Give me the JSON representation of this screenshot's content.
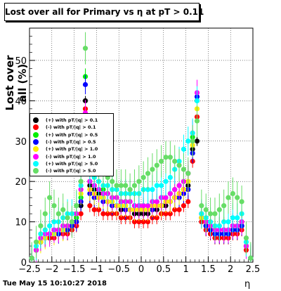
{
  "title": "Lost over all for Primary vs   η at pT > 0.11",
  "timestamp": "Tue May 15 10:10:27 2018",
  "chart_data": {
    "type": "scatter",
    "title": "Lost over all for Primary vs   η at pT > 0.11",
    "xlabel": "η",
    "ylabel": "Lost over all (%)",
    "xlim": [
      -2.5,
      2.5
    ],
    "ylim": [
      0,
      58
    ],
    "xticks": [
      "−2.5",
      "−2",
      "−1.5",
      "−1",
      "−0.5",
      "0",
      "0.5",
      "1",
      "1.5",
      "2",
      "2.5"
    ],
    "yticks": [
      "0",
      "10",
      "20",
      "30",
      "40",
      "50"
    ],
    "grid": true,
    "legend_position": "left",
    "series": [
      {
        "name": "(+) with pT/|q| > 0.1",
        "color": "#000000",
        "x": [
          -2.45,
          -2.35,
          -2.25,
          -2.15,
          -2.05,
          -1.95,
          -1.85,
          -1.75,
          -1.65,
          -1.55,
          -1.45,
          -1.35,
          -1.25,
          -1.15,
          -1.05,
          -0.95,
          -0.85,
          -0.75,
          -0.65,
          -0.55,
          -0.45,
          -0.35,
          -0.25,
          -0.15,
          -0.05,
          0.05,
          0.15,
          0.25,
          0.35,
          0.45,
          0.55,
          0.65,
          0.75,
          0.85,
          0.95,
          1.05,
          1.15,
          1.25,
          1.35,
          1.45,
          1.55,
          1.65,
          1.75,
          1.85,
          1.95,
          2.05,
          2.15,
          2.25,
          2.35,
          2.45
        ],
        "y": [
          1,
          3,
          5,
          6,
          6,
          7,
          7,
          8,
          8,
          9,
          10,
          14,
          40,
          19,
          18,
          17,
          16,
          15,
          14,
          14,
          13,
          13,
          13,
          12,
          12,
          12,
          12,
          13,
          13,
          14,
          14,
          15,
          16,
          17,
          18,
          19,
          28,
          30,
          11,
          9,
          8,
          7,
          7,
          7,
          7,
          7,
          8,
          9,
          4,
          1
        ]
      },
      {
        "name": "(-) with pT/|q| > 0.1",
        "color": "#ff0000",
        "x": [
          -2.45,
          -2.35,
          -2.25,
          -2.15,
          -2.05,
          -1.95,
          -1.85,
          -1.75,
          -1.65,
          -1.55,
          -1.45,
          -1.35,
          -1.25,
          -1.15,
          -1.05,
          -0.95,
          -0.85,
          -0.75,
          -0.65,
          -0.55,
          -0.45,
          -0.35,
          -0.25,
          -0.15,
          -0.05,
          0.05,
          0.15,
          0.25,
          0.35,
          0.45,
          0.55,
          0.65,
          0.75,
          0.85,
          0.95,
          1.05,
          1.15,
          1.25,
          1.35,
          1.45,
          1.55,
          1.65,
          1.75,
          1.85,
          1.95,
          2.05,
          2.15,
          2.25,
          2.35,
          2.45
        ],
        "y": [
          1,
          3,
          5,
          6,
          6,
          6,
          7,
          7,
          7,
          8,
          9,
          12,
          38,
          14,
          13,
          13,
          12,
          12,
          12,
          12,
          11,
          11,
          11,
          10,
          10,
          10,
          10,
          11,
          11,
          12,
          12,
          12,
          13,
          13,
          14,
          15,
          25,
          36,
          10,
          8,
          7,
          6,
          6,
          6,
          6,
          7,
          7,
          8,
          3,
          1
        ]
      },
      {
        "name": "(+) with pT/|q| > 0.5",
        "color": "#00ee00",
        "x": [
          -2.45,
          -2.35,
          -2.25,
          -2.15,
          -2.05,
          -1.95,
          -1.85,
          -1.75,
          -1.65,
          -1.55,
          -1.45,
          -1.35,
          -1.25,
          -1.15,
          -1.05,
          -0.95,
          -0.85,
          -0.75,
          -0.65,
          -0.55,
          -0.45,
          -0.35,
          -0.25,
          -0.15,
          -0.05,
          0.05,
          0.15,
          0.25,
          0.35,
          0.45,
          0.55,
          0.65,
          0.75,
          0.85,
          0.95,
          1.05,
          1.15,
          1.25,
          1.35,
          1.45,
          1.55,
          1.65,
          1.75,
          1.85,
          1.95,
          2.05,
          2.15,
          2.25,
          2.35,
          2.45
        ],
        "y": [
          1,
          3,
          5,
          6,
          7,
          7,
          8,
          8,
          9,
          10,
          11,
          16,
          46,
          20,
          19,
          18,
          18,
          17,
          16,
          16,
          15,
          15,
          15,
          14,
          14,
          14,
          14,
          15,
          15,
          16,
          16,
          17,
          18,
          19,
          20,
          22,
          31,
          40,
          12,
          10,
          9,
          8,
          8,
          8,
          8,
          8,
          9,
          10,
          4,
          1
        ]
      },
      {
        "name": "(-) with pT/|q| > 0.5",
        "color": "#0000ff",
        "x": [
          -2.45,
          -2.35,
          -2.25,
          -2.15,
          -2.05,
          -1.95,
          -1.85,
          -1.75,
          -1.65,
          -1.55,
          -1.45,
          -1.35,
          -1.25,
          -1.15,
          -1.05,
          -0.95,
          -0.85,
          -0.75,
          -0.65,
          -0.55,
          -0.45,
          -0.35,
          -0.25,
          -0.15,
          -0.05,
          0.05,
          0.15,
          0.25,
          0.35,
          0.45,
          0.55,
          0.65,
          0.75,
          0.85,
          0.95,
          1.05,
          1.15,
          1.25,
          1.35,
          1.45,
          1.55,
          1.65,
          1.75,
          1.85,
          1.95,
          2.05,
          2.15,
          2.25,
          2.35,
          2.45
        ],
        "y": [
          1,
          3,
          5,
          6,
          7,
          7,
          7,
          8,
          8,
          9,
          10,
          15,
          44,
          17,
          16,
          16,
          15,
          15,
          14,
          14,
          14,
          13,
          13,
          13,
          13,
          13,
          13,
          13,
          14,
          14,
          15,
          15,
          16,
          16,
          17,
          18,
          27,
          41,
          11,
          9,
          8,
          7,
          7,
          7,
          7,
          8,
          8,
          9,
          4,
          1
        ]
      },
      {
        "name": "(+) with pT/|q| > 1.0",
        "color": "#ffee00",
        "x": [
          -2.45,
          -2.35,
          -2.25,
          -2.15,
          -2.05,
          -1.95,
          -1.85,
          -1.75,
          -1.65,
          -1.55,
          -1.45,
          -1.35,
          -1.25,
          -1.15,
          -1.05,
          -0.95,
          -0.85,
          -0.75,
          -0.65,
          -0.55,
          -0.45,
          -0.35,
          -0.25,
          -0.15,
          -0.05,
          0.05,
          0.15,
          0.25,
          0.35,
          0.45,
          0.55,
          0.65,
          0.75,
          0.85,
          0.95,
          1.05,
          1.15,
          1.25,
          1.35,
          1.45,
          1.55,
          1.65,
          1.75,
          1.85,
          1.95,
          2.05,
          2.15,
          2.25,
          2.35,
          2.45
        ],
        "y": [
          1,
          3,
          5,
          6,
          7,
          7,
          8,
          8,
          9,
          10,
          12,
          17,
          30,
          18,
          17,
          16,
          16,
          15,
          15,
          14,
          14,
          14,
          13,
          13,
          13,
          13,
          13,
          14,
          14,
          14,
          15,
          15,
          16,
          17,
          18,
          20,
          29,
          38,
          11,
          10,
          9,
          8,
          8,
          8,
          8,
          9,
          9,
          10,
          4,
          1
        ]
      },
      {
        "name": "(-) with pT/|q| > 1.0",
        "color": "#ff00ff",
        "x": [
          -2.45,
          -2.35,
          -2.25,
          -2.15,
          -2.05,
          -1.95,
          -1.85,
          -1.75,
          -1.65,
          -1.55,
          -1.45,
          -1.35,
          -1.25,
          -1.15,
          -1.05,
          -0.95,
          -0.85,
          -0.75,
          -0.65,
          -0.55,
          -0.45,
          -0.35,
          -0.25,
          -0.15,
          -0.05,
          0.05,
          0.15,
          0.25,
          0.35,
          0.45,
          0.55,
          0.65,
          0.75,
          0.85,
          0.95,
          1.05,
          1.15,
          1.25,
          1.35,
          1.45,
          1.55,
          1.65,
          1.75,
          1.85,
          1.95,
          2.05,
          2.15,
          2.25,
          2.35,
          2.45
        ],
        "y": [
          1,
          3,
          6,
          7,
          7,
          8,
          8,
          9,
          9,
          10,
          12,
          18,
          37,
          20,
          19,
          18,
          17,
          17,
          16,
          16,
          15,
          15,
          15,
          14,
          14,
          14,
          14,
          15,
          15,
          16,
          16,
          17,
          18,
          19,
          20,
          22,
          32,
          42,
          12,
          10,
          9,
          8,
          8,
          8,
          8,
          9,
          9,
          10,
          4,
          1
        ]
      },
      {
        "name": "(+) with pT/|q| > 5.0",
        "color": "#00ffff",
        "x": [
          -2.45,
          -2.35,
          -2.25,
          -2.15,
          -2.05,
          -1.95,
          -1.85,
          -1.75,
          -1.65,
          -1.55,
          -1.45,
          -1.35,
          -1.25,
          -1.15,
          -1.05,
          -0.95,
          -0.85,
          -0.75,
          -0.65,
          -0.55,
          -0.45,
          -0.35,
          -0.25,
          -0.15,
          -0.05,
          0.05,
          0.15,
          0.25,
          0.35,
          0.45,
          0.55,
          0.65,
          0.75,
          0.85,
          0.95,
          1.05,
          1.15,
          1.25,
          1.35,
          1.45,
          1.55,
          1.65,
          1.75,
          1.85,
          1.95,
          2.05,
          2.15,
          2.25,
          2.35,
          2.45
        ],
        "y": [
          1,
          4,
          7,
          8,
          9,
          10,
          10,
          11,
          12,
          12,
          14,
          19,
          33,
          22,
          21,
          20,
          19,
          19,
          18,
          18,
          17,
          17,
          17,
          17,
          17,
          18,
          18,
          18,
          19,
          19,
          20,
          21,
          23,
          25,
          28,
          30,
          32,
          40,
          12,
          11,
          10,
          9,
          9,
          10,
          10,
          11,
          11,
          12,
          5,
          1
        ]
      },
      {
        "name": "(-) with pT/|q| > 5.0",
        "color": "#66dd66",
        "x": [
          -2.45,
          -2.35,
          -2.25,
          -2.15,
          -2.05,
          -1.95,
          -1.85,
          -1.75,
          -1.65,
          -1.55,
          -1.45,
          -1.35,
          -1.25,
          -1.15,
          -1.05,
          -0.95,
          -0.85,
          -0.75,
          -0.65,
          -0.55,
          -0.45,
          -0.35,
          -0.25,
          -0.15,
          -0.05,
          0.05,
          0.15,
          0.25,
          0.35,
          0.45,
          0.55,
          0.65,
          0.75,
          0.85,
          0.95,
          1.05,
          1.15,
          1.25,
          1.35,
          1.45,
          1.55,
          1.65,
          1.75,
          1.85,
          1.95,
          2.05,
          2.15,
          2.25,
          2.35,
          2.45
        ],
        "y": [
          1,
          5,
          9,
          12,
          16,
          14,
          12,
          13,
          11,
          10,
          14,
          20,
          53,
          26,
          24,
          23,
          22,
          21,
          20,
          19,
          19,
          19,
          18,
          19,
          20,
          21,
          22,
          23,
          24,
          25,
          26,
          26,
          25,
          24,
          23,
          22,
          30,
          35,
          14,
          13,
          12,
          12,
          13,
          14,
          16,
          17,
          16,
          15,
          6,
          1
        ]
      }
    ]
  }
}
